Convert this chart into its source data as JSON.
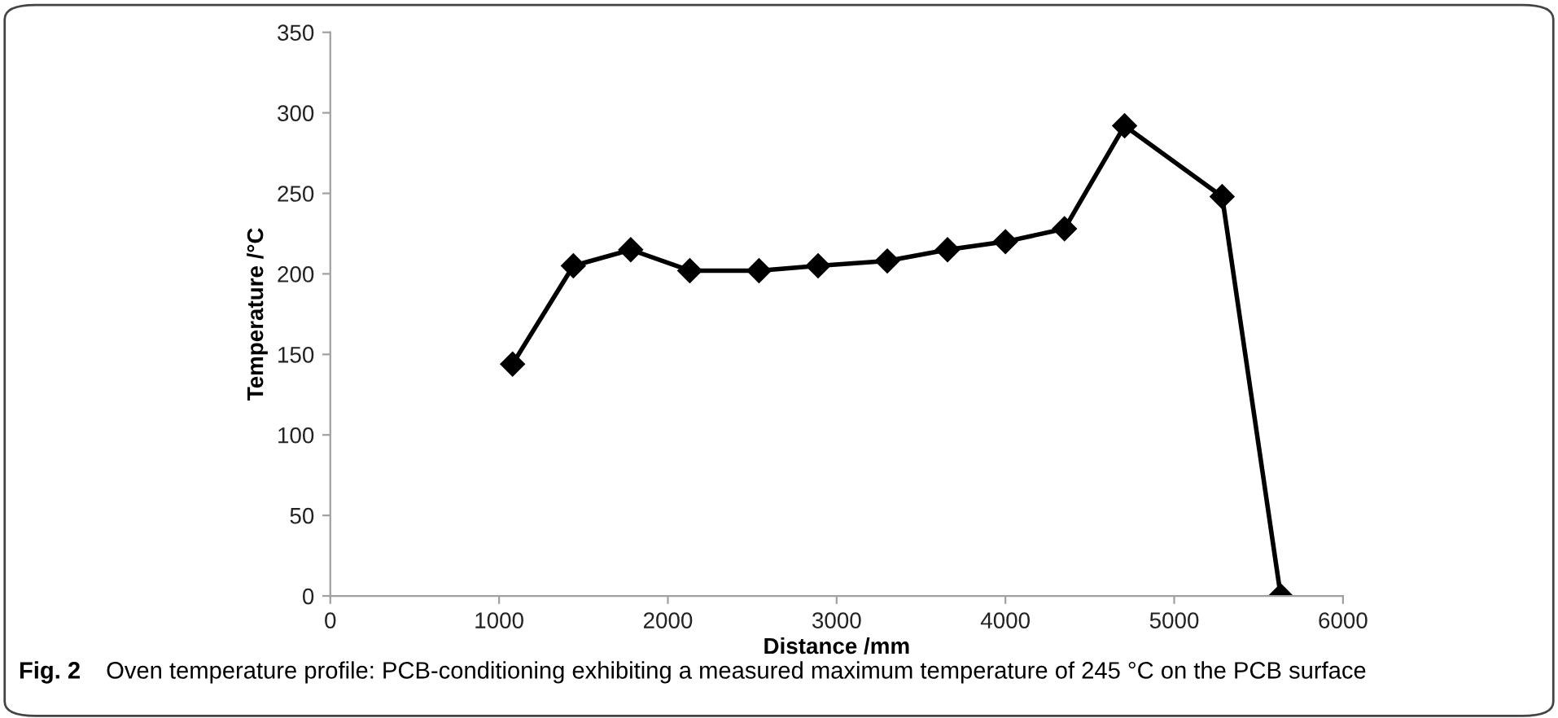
{
  "chart_data": {
    "type": "line",
    "xlabel": "Distance /mm",
    "ylabel": "Temperature /°C",
    "x": [
      1080,
      1440,
      1780,
      2130,
      2540,
      2890,
      3300,
      3657,
      4000,
      4350,
      4706,
      5284,
      5631
    ],
    "series": [
      {
        "color": "#000000",
        "values": [
          144,
          205,
          215,
          202,
          202,
          205,
          208,
          215,
          220,
          228,
          292,
          248,
          0
        ]
      }
    ],
    "xlim": [
      0,
      6000
    ],
    "xticks": [
      0,
      1000,
      2000,
      3000,
      4000,
      5000,
      6000
    ],
    "ylim": [
      0,
      350
    ],
    "yticks": [
      0,
      50,
      100,
      150,
      200,
      250,
      300,
      350
    ],
    "marker": "diamond",
    "line_style": "solid",
    "grid": false,
    "legend": false,
    "annotations": [
      "Fig. 2",
      "Oven temperature profile: PCB-conditioning exhibiting a measured maximum temperature of 245 °C on the PCB surface"
    ]
  }
}
